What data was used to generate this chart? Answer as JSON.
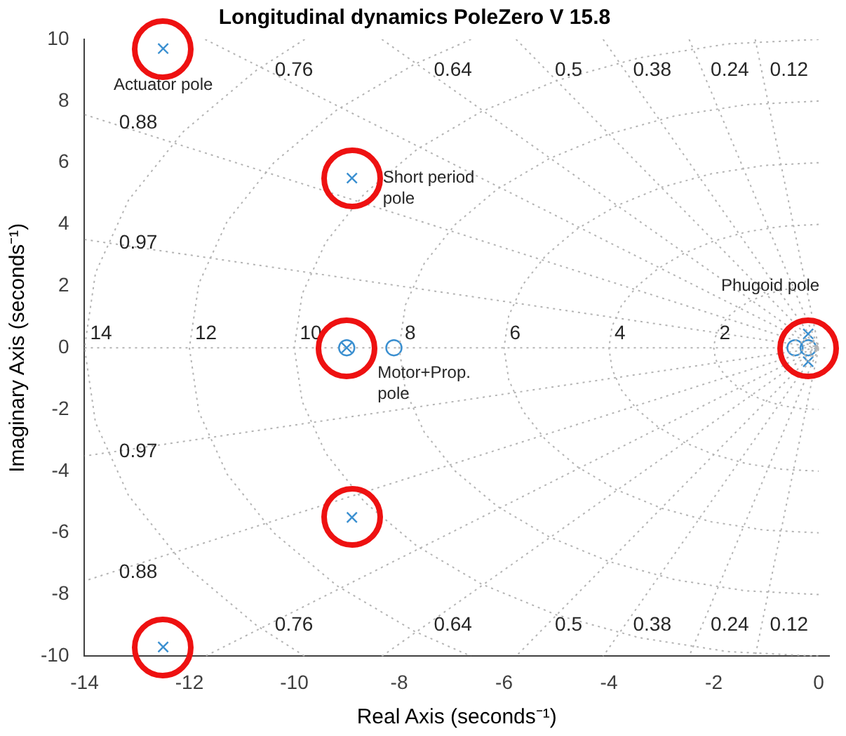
{
  "chart_data": {
    "type": "scatter",
    "title": "Longitudinal dynamics PoleZero V 15.8",
    "xlabel": "Real Axis (seconds⁻¹)",
    "ylabel": "Imaginary Axis (seconds⁻¹)",
    "xlim": [
      -14,
      0.2
    ],
    "xticks": [
      -14,
      -12,
      -10,
      -8,
      -6,
      -4,
      -2,
      0
    ],
    "ylim": [
      -10,
      10
    ],
    "yticks": [
      -10,
      -8,
      -6,
      -4,
      -2,
      0,
      2,
      4,
      6,
      8,
      10
    ],
    "grid": false,
    "legend": false,
    "series": [
      {
        "type": "line",
        "color": "#b4b4b4",
        "line_style": "dotted",
        "marker": "none",
        "x": [
          -14,
          0,
          -14
        ],
        "values": [
          3.51,
          0,
          -3.51
        ]
      },
      {
        "type": "line",
        "color": "#b4b4b4",
        "line_style": "dotted",
        "marker": "none",
        "x": [
          -14,
          0,
          -14
        ],
        "values": [
          7.56,
          0,
          -7.56
        ]
      },
      {
        "type": "line",
        "color": "#b4b4b4",
        "line_style": "dotted",
        "marker": "none",
        "x": [
          -11.7,
          0,
          -11.7
        ],
        "values": [
          10,
          0,
          -10
        ]
      },
      {
        "type": "line",
        "color": "#b4b4b4",
        "line_style": "dotted",
        "marker": "none",
        "x": [
          -8.33,
          0,
          -8.33
        ],
        "values": [
          10,
          0,
          -10
        ]
      },
      {
        "type": "line",
        "color": "#b4b4b4",
        "line_style": "dotted",
        "marker": "none",
        "x": [
          -5.77,
          0,
          -5.77
        ],
        "values": [
          10,
          0,
          -10
        ]
      },
      {
        "type": "line",
        "color": "#b4b4b4",
        "line_style": "dotted",
        "marker": "none",
        "x": [
          -4.11,
          0,
          -4.11
        ],
        "values": [
          10,
          0,
          -10
        ]
      },
      {
        "type": "line",
        "color": "#b4b4b4",
        "line_style": "dotted",
        "marker": "none",
        "x": [
          -2.47,
          0,
          -2.47
        ],
        "values": [
          10,
          0,
          -10
        ]
      },
      {
        "type": "line",
        "color": "#b4b4b4",
        "line_style": "dotted",
        "marker": "none",
        "x": [
          -1.21,
          0,
          -1.21
        ],
        "values": [
          10,
          0,
          -10
        ]
      },
      {
        "type": "line",
        "color": "#b4b4b4",
        "line_style": "dotted",
        "marker": "none",
        "x": [
          0,
          -0.35,
          -0.68,
          -1,
          -1.29,
          -1.53,
          -1.73,
          -1.88,
          -1.97,
          -2,
          -1.97,
          -1.88,
          -1.73,
          -1.53,
          -1.29,
          -1,
          -0.68,
          -0.35,
          0
        ],
        "values": [
          2,
          1.97,
          1.88,
          1.73,
          1.53,
          1.29,
          1,
          0.68,
          0.35,
          0,
          -0.35,
          -0.68,
          -1,
          -1.29,
          -1.53,
          -1.73,
          -1.88,
          -1.97,
          -2
        ]
      },
      {
        "type": "line",
        "color": "#b4b4b4",
        "line_style": "dotted",
        "marker": "none",
        "x": [
          0,
          -0.69,
          -1.37,
          -2,
          -2.57,
          -3.06,
          -3.46,
          -3.76,
          -3.94,
          -4,
          -3.94,
          -3.76,
          -3.46,
          -3.06,
          -2.57,
          -2,
          -1.37,
          -0.69,
          0
        ],
        "values": [
          4,
          3.94,
          3.76,
          3.46,
          3.06,
          2.57,
          2,
          1.37,
          0.69,
          0,
          -0.69,
          -1.37,
          -2,
          -2.57,
          -3.06,
          -3.46,
          -3.76,
          -3.94,
          -4
        ]
      },
      {
        "type": "line",
        "color": "#b4b4b4",
        "line_style": "dotted",
        "marker": "none",
        "x": [
          0,
          -1.04,
          -2.05,
          -3,
          -3.86,
          -4.6,
          -5.2,
          -5.64,
          -5.91,
          -6,
          -5.91,
          -5.64,
          -5.2,
          -4.6,
          -3.86,
          -3,
          -2.05,
          -1.04,
          0
        ],
        "values": [
          6,
          5.91,
          5.64,
          5.2,
          4.6,
          3.86,
          3,
          2.05,
          1.04,
          0,
          -1.04,
          -2.05,
          -3,
          -3.86,
          -4.6,
          -5.2,
          -5.64,
          -5.91,
          -6
        ]
      },
      {
        "type": "line",
        "color": "#b4b4b4",
        "line_style": "dotted",
        "marker": "none",
        "x": [
          0,
          -1.39,
          -2.74,
          -4,
          -5.14,
          -6.13,
          -6.93,
          -7.52,
          -7.88,
          -8,
          -7.88,
          -7.52,
          -6.93,
          -6.13,
          -5.14,
          -4,
          -2.74,
          -1.39,
          0
        ],
        "values": [
          8,
          7.88,
          7.52,
          6.93,
          6.13,
          5.14,
          4,
          2.74,
          1.39,
          0,
          -1.39,
          -2.74,
          -4,
          -5.14,
          -6.13,
          -6.93,
          -7.52,
          -7.88,
          -8
        ]
      },
      {
        "type": "line",
        "color": "#b4b4b4",
        "line_style": "dotted",
        "marker": "none",
        "x": [
          0,
          -1.74,
          -3.42,
          -5,
          -6.43,
          -7.66,
          -8.66,
          -9.4,
          -9.85,
          -10,
          -9.85,
          -9.4,
          -8.66,
          -7.66,
          -6.43,
          -5,
          -3.42,
          -1.74,
          0
        ],
        "values": [
          10,
          9.85,
          9.4,
          8.66,
          7.66,
          6.43,
          5,
          3.42,
          1.74,
          0,
          -1.74,
          -3.42,
          -5,
          -6.43,
          -7.66,
          -8.66,
          -9.4,
          -9.85,
          -10
        ]
      },
      {
        "type": "line",
        "color": "#b4b4b4",
        "line_style": "dotted",
        "marker": "none",
        "x": [
          -6.63,
          -7.71,
          -9.19,
          -10.39,
          -11.28,
          -11.82,
          -12,
          -11.82,
          -11.28,
          -10.39,
          -9.19,
          -7.71,
          -6.63
        ],
        "values": [
          10,
          9.19,
          7.71,
          6,
          4.1,
          2.08,
          0,
          -2.08,
          -4.1,
          -6,
          -7.71,
          -9.19,
          -10
        ]
      },
      {
        "type": "line",
        "color": "#b4b4b4",
        "line_style": "dotted",
        "marker": "none",
        "x": [
          -9.8,
          -10.72,
          -12.12,
          -13.16,
          -13.79,
          -14,
          -13.79,
          -13.16,
          -12.12,
          -10.72,
          -9.8
        ],
        "values": [
          10,
          9,
          7,
          4.79,
          2.43,
          0,
          -2.43,
          -4.79,
          -7,
          -9,
          -10
        ]
      },
      {
        "color": "#3a8fd0",
        "marker": "circle",
        "x": [
          -9.0,
          -8.1,
          -0.45,
          -0.2
        ],
        "values": [
          0,
          0,
          0,
          0
        ]
      },
      {
        "color": "#3a8fd0",
        "marker": "cross",
        "x": [
          -12.5,
          -12.5,
          -8.9,
          -8.9,
          -9.0,
          -0.2,
          -0.2
        ],
        "values": [
          9.7,
          -9.7,
          5.5,
          -5.5,
          0,
          0.45,
          -0.45
        ]
      }
    ],
    "ref_lines": [
      {
        "axis": "y",
        "value": 0,
        "color": "#b4b4b4",
        "line_style": "dotted"
      }
    ],
    "annotations": [
      {
        "text": "0.76",
        "x": -10.53,
        "y": 9
      },
      {
        "text": "0.64",
        "x": -7.5,
        "y": 9
      },
      {
        "text": "0.5",
        "x": -5.19,
        "y": 9
      },
      {
        "text": "0.38",
        "x": -3.7,
        "y": 9
      },
      {
        "text": "0.24",
        "x": -2.22,
        "y": 9
      },
      {
        "text": "0.12",
        "x": -1.09,
        "y": 9
      },
      {
        "text": "0.76",
        "x": -10.53,
        "y": -9
      },
      {
        "text": "0.64",
        "x": -7.5,
        "y": -9
      },
      {
        "text": "0.5",
        "x": -5.19,
        "y": -9
      },
      {
        "text": "0.38",
        "x": -3.7,
        "y": -9
      },
      {
        "text": "0.24",
        "x": -2.22,
        "y": -9
      },
      {
        "text": "0.12",
        "x": -1.09,
        "y": -9
      },
      {
        "text": "0.88",
        "x": -13.5,
        "y": 7.29
      },
      {
        "text": "0.97",
        "x": -13.5,
        "y": 3.38
      },
      {
        "text": "0.88",
        "x": -13.5,
        "y": -7.29
      },
      {
        "text": "0.97",
        "x": -13.5,
        "y": -3.38
      },
      {
        "text": "14",
        "x": -14,
        "y": 0
      },
      {
        "text": "12",
        "x": -12,
        "y": 0
      },
      {
        "text": "10",
        "x": -10,
        "y": 0
      },
      {
        "text": "8",
        "x": -8,
        "y": 0
      },
      {
        "text": "6",
        "x": -6,
        "y": 0
      },
      {
        "text": "4",
        "x": -4,
        "y": 0
      },
      {
        "text": "2",
        "x": -2,
        "y": 0
      },
      {
        "text": "Actuator pole",
        "x": -12.5,
        "y": 9.7
      },
      {
        "text": "Short period\npole",
        "x": -8.9,
        "y": 5.5
      },
      {
        "text": "Motor+Prop.\npole",
        "x": -9.0,
        "y": 0
      },
      {
        "text": "Phugoid pole",
        "x": -0.2,
        "y": 0.45
      }
    ]
  }
}
